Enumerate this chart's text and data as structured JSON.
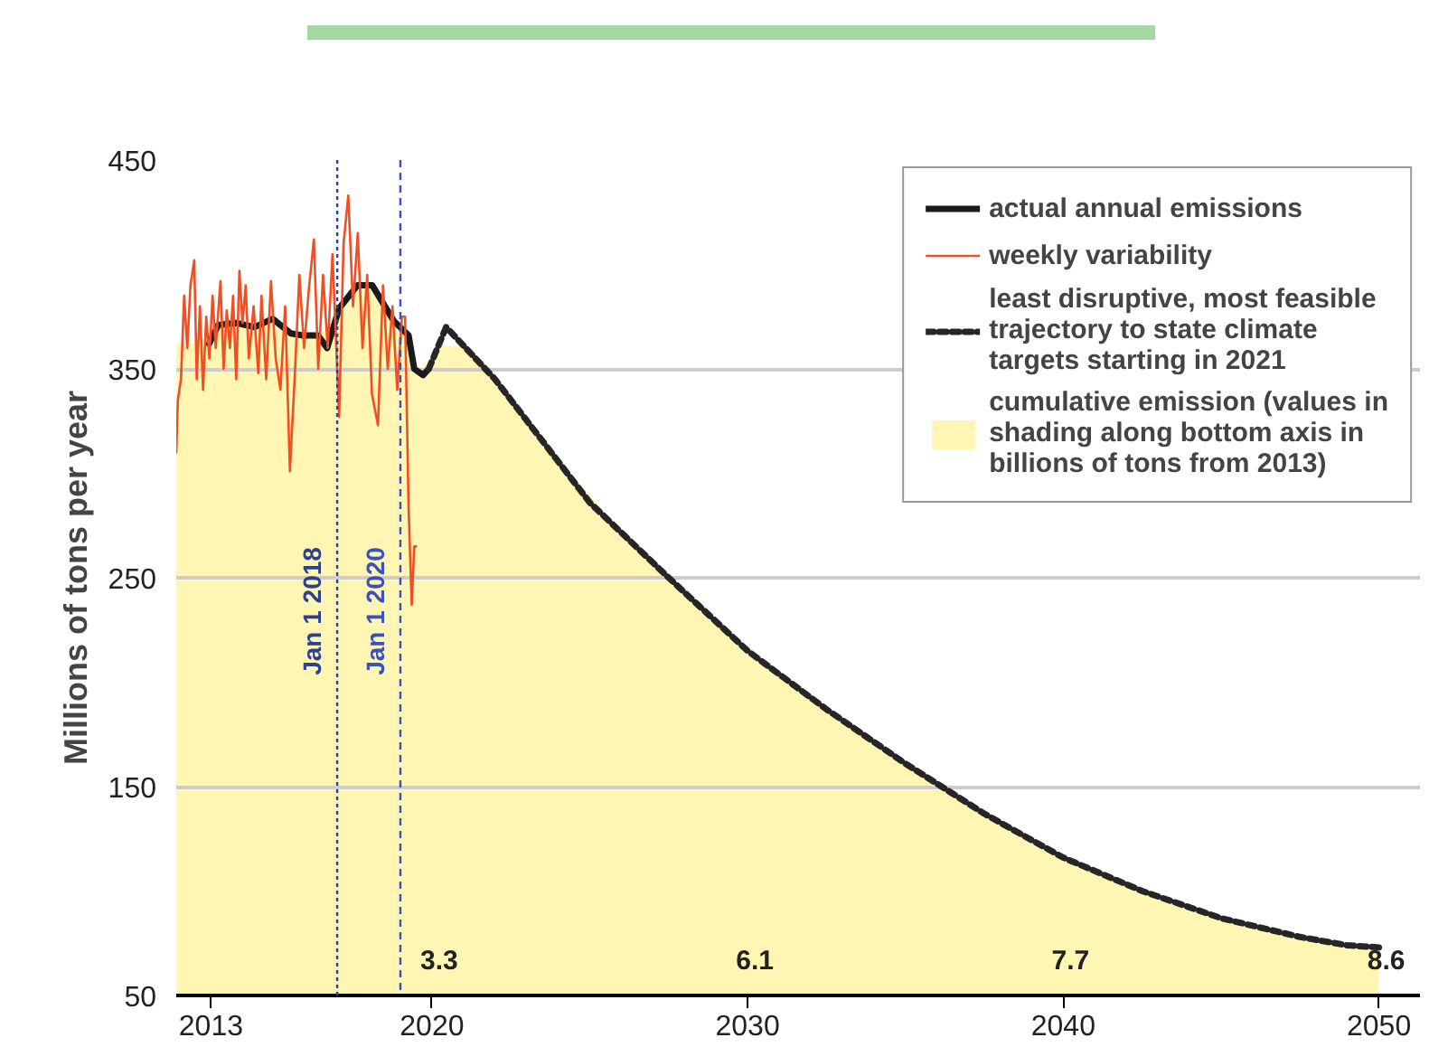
{
  "chart_data": {
    "type": "line",
    "ylabel": "Millions of tons per year",
    "xlim": [
      2011.9,
      2051.3
    ],
    "ylim": [
      50,
      450
    ],
    "xticks": [
      2013,
      2020,
      2030,
      2040,
      2050
    ],
    "yticks": [
      50,
      150,
      250,
      350,
      450
    ],
    "grid": "y",
    "legend": "top right",
    "series": [
      {
        "name": "actual annual emissions",
        "color": "#1a1a1a",
        "line_style": "solid",
        "x": [
          2012.94,
          2013.23,
          2013.8,
          2014.38,
          2014.95,
          2015.53,
          2015.91,
          2016.39,
          2016.68,
          2017.06,
          2017.64,
          2018.11,
          2018.79,
          2019.26,
          2019.44,
          2019.72,
          2019.9
        ],
        "values": [
          362,
          371,
          372,
          370,
          374,
          367,
          366,
          366,
          360,
          379,
          390,
          390,
          373,
          366,
          350,
          347,
          350
        ]
      },
      {
        "name": "weekly variability",
        "color": "#f04e23",
        "line_style": "solid",
        "x": [
          2011.9,
          2011.95,
          2012.05,
          2012.15,
          2012.25,
          2012.35,
          2012.47,
          2012.55,
          2012.65,
          2012.75,
          2012.85,
          2012.95,
          2013.05,
          2013.15,
          2013.3,
          2013.4,
          2013.5,
          2013.6,
          2013.7,
          2013.8,
          2013.9,
          2014.0,
          2014.1,
          2014.2,
          2014.35,
          2014.5,
          2014.6,
          2014.75,
          2014.9,
          2015.05,
          2015.2,
          2015.35,
          2015.5,
          2015.65,
          2015.8,
          2015.95,
          2016.1,
          2016.26,
          2016.4,
          2016.55,
          2016.7,
          2016.85,
          2017.06,
          2017.2,
          2017.35,
          2017.5,
          2017.65,
          2017.8,
          2017.95,
          2018.1,
          2018.29,
          2018.45,
          2018.6,
          2018.75,
          2018.9,
          2019.05,
          2019.15,
          2019.26,
          2019.36,
          2019.44,
          2019.5
        ],
        "values": [
          310,
          335,
          345,
          385,
          360,
          390,
          402,
          345,
          380,
          340,
          375,
          355,
          385,
          360,
          392,
          350,
          378,
          360,
          385,
          345,
          397,
          372,
          390,
          355,
          380,
          348,
          385,
          345,
          392,
          355,
          340,
          380,
          301,
          345,
          395,
          360,
          388,
          412,
          350,
          395,
          360,
          405,
          327,
          410,
          433,
          380,
          415,
          360,
          395,
          338,
          323,
          390,
          350,
          380,
          340,
          375,
          375,
          284,
          237,
          265,
          265
        ]
      },
      {
        "name": "least disruptive, most feasible trajectory to state climate targets starting in 2021",
        "color": "#262626",
        "line_style": "dashed",
        "x": [
          2019.9,
          2020.45,
          2022,
          2025,
          2027.5,
          2030,
          2032.5,
          2035,
          2037.5,
          2040,
          2042.5,
          2045,
          2047.5,
          2049,
          2050
        ],
        "values": [
          350,
          370,
          345,
          286,
          250,
          215,
          187,
          161,
          137,
          116,
          100,
          87,
          78,
          74,
          73
        ]
      },
      {
        "name": "cumulative emission (values in shading along bottom axis in billions of tons from 2013)",
        "type": "area",
        "color": "#fff6b3",
        "x": [
          2011.9,
          2012.5,
          2013.5,
          2014.0,
          2014.7,
          2015.2,
          2015.7,
          2016.2,
          2016.9,
          2017.3,
          2017.9,
          2018.5,
          2019.0,
          2019.35,
          2019.6,
          2020.2,
          2021,
          2023.5,
          2026,
          2028.7,
          2031.2,
          2033.7,
          2036.2,
          2038.7,
          2041.2,
          2043.7,
          2046.2,
          2048.2,
          2050
        ],
        "values": [
          362,
          362,
          371,
          371,
          372,
          371,
          367,
          366,
          370,
          384,
          390,
          380,
          370,
          358,
          348,
          361,
          361,
          316,
          272,
          232,
          201,
          174,
          149,
          126,
          108,
          93,
          82,
          76,
          73
        ]
      }
    ],
    "ref_lines": [
      {
        "axis": "x",
        "value": 2017.0,
        "label": "Jan 1 2018",
        "color": "#2d3f8f",
        "line_style": "dotted"
      },
      {
        "axis": "x",
        "value": 2019.0,
        "label": "Jan 1 2020",
        "color": "#3b50c0",
        "line_style": "dashed"
      }
    ],
    "annotations": [
      "3.3",
      "6.1",
      "7.7",
      "8.6"
    ]
  }
}
